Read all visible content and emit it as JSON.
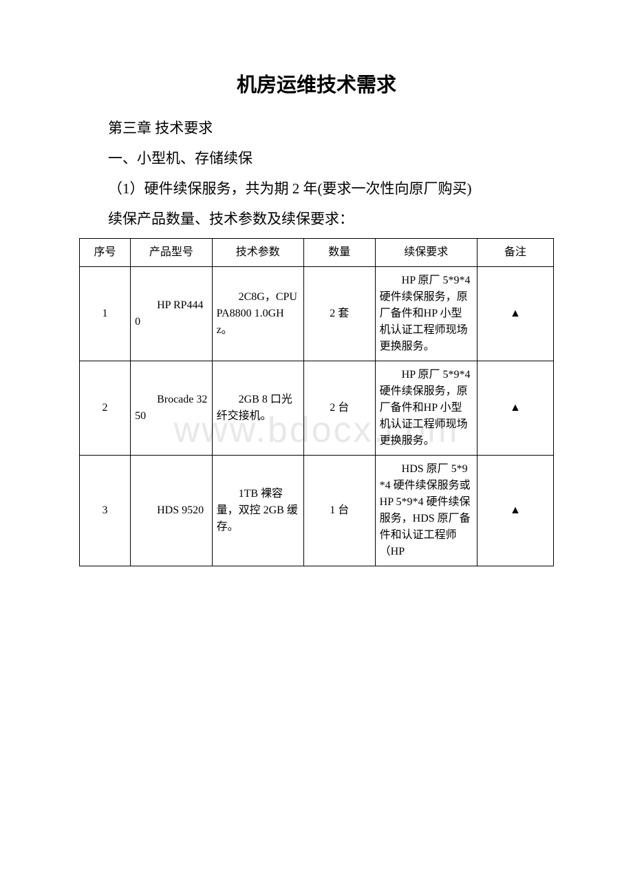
{
  "watermark_text": "www.bdocx.com",
  "title": "机房运维技术需求",
  "chapter": "第三章 技术要求",
  "section": "一、小型机、存储续保",
  "paragraph1": "（1）硬件续保服务，共为期 2 年(要求一次性向原厂购买)",
  "paragraph2": "续保产品数量、技术参数及续保要求：",
  "table": {
    "columns": [
      "序号",
      "产品型号",
      "技术参数",
      "数量",
      "续保要求",
      "备注"
    ],
    "column_widths": [
      "10%",
      "16%",
      "18%",
      "14%",
      "20%",
      "15%"
    ],
    "border_color": "#000000",
    "font_size": 16,
    "rows": [
      {
        "seq": "1",
        "model": "　　HP RP4440",
        "spec": "　　2C8G，CPUPA8800 1.0GHz。",
        "qty": "2 套",
        "req": "　　HP 原厂 5*9*4 硬件续保服务，原厂备件和HP 小型机认证工程师现场更换服务。",
        "remark": "▲"
      },
      {
        "seq": "2",
        "model": "　　Brocade 3250",
        "spec": "　　2GB 8 口光纤交接机。",
        "qty": "2 台",
        "req": "　　HP 原厂 5*9*4 硬件续保服务，原厂备件和HP 小型机认证工程师现场更换服务。",
        "remark": "▲"
      },
      {
        "seq": "3",
        "model": "　　HDS 9520",
        "spec": "　　1TB 裸容量，双控 2GB 缓存。",
        "qty": "1 台",
        "req": "　　HDS 原厂 5*9*4 硬件续保服务或 HP 5*9*4 硬件续保服务，HDS 原厂备件和认证工程师（HP",
        "remark": "▲"
      }
    ]
  },
  "colors": {
    "background": "#ffffff",
    "text": "#000000",
    "border": "#000000",
    "watermark": "#e8e8e8"
  }
}
